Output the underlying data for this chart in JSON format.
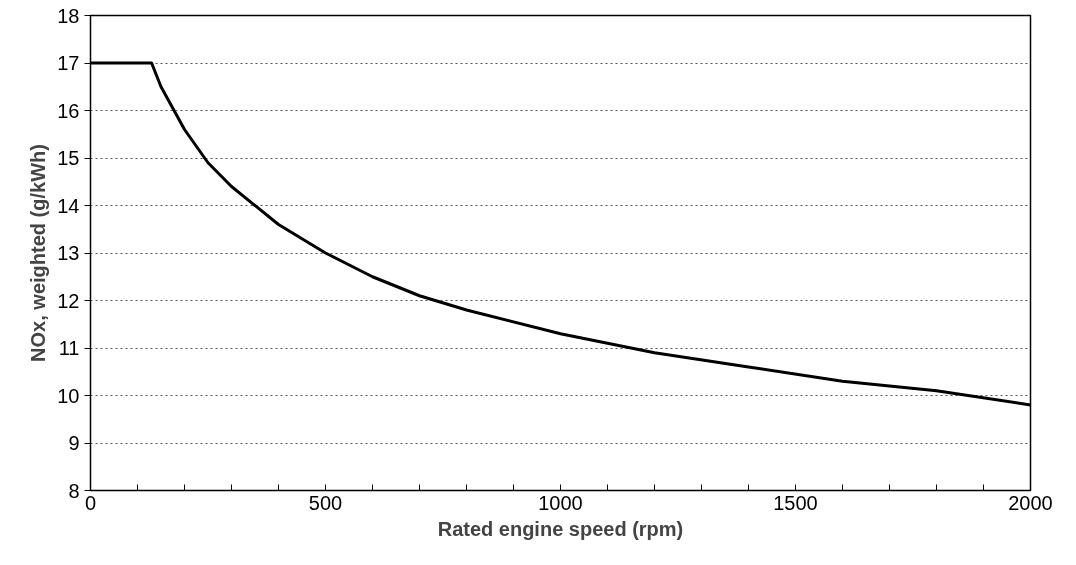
{
  "chart_data": {
    "type": "line",
    "xlabel": "Rated engine speed (rpm)",
    "ylabel": "NOx, weighted (g/kWh)",
    "x": [
      0,
      130,
      150,
      200,
      250,
      300,
      400,
      500,
      600,
      700,
      800,
      1000,
      1200,
      1400,
      1600,
      1800,
      2000
    ],
    "series": [
      {
        "color": "#000000",
        "values": [
          17.0,
          17.0,
          16.5,
          15.6,
          14.9,
          14.4,
          13.6,
          13.0,
          12.5,
          12.1,
          11.8,
          11.3,
          10.9,
          10.6,
          10.3,
          10.1,
          9.8
        ]
      }
    ],
    "xlim": [
      0,
      2000
    ],
    "ylim": [
      8,
      18
    ],
    "xticks": [
      0,
      {
        "value": 100,
        "label": null
      },
      {
        "value": 200,
        "label": null
      },
      {
        "value": 300,
        "label": null
      },
      {
        "value": 400,
        "label": null
      },
      500,
      {
        "value": 600,
        "label": null
      },
      {
        "value": 700,
        "label": null
      },
      {
        "value": 800,
        "label": null
      },
      {
        "value": 900,
        "label": null
      },
      1000,
      {
        "value": 1100,
        "label": null
      },
      {
        "value": 1200,
        "label": null
      },
      {
        "value": 1300,
        "label": null
      },
      {
        "value": 1400,
        "label": null
      },
      1500,
      {
        "value": 1600,
        "label": null
      },
      {
        "value": 1700,
        "label": null
      },
      {
        "value": 1800,
        "label": null
      },
      {
        "value": 1900,
        "label": null
      },
      2000
    ],
    "yticks": [
      8,
      9,
      10,
      11,
      12,
      13,
      14,
      15,
      16,
      17,
      18
    ],
    "grid": "y",
    "marker": "none",
    "line_style": "solid"
  }
}
